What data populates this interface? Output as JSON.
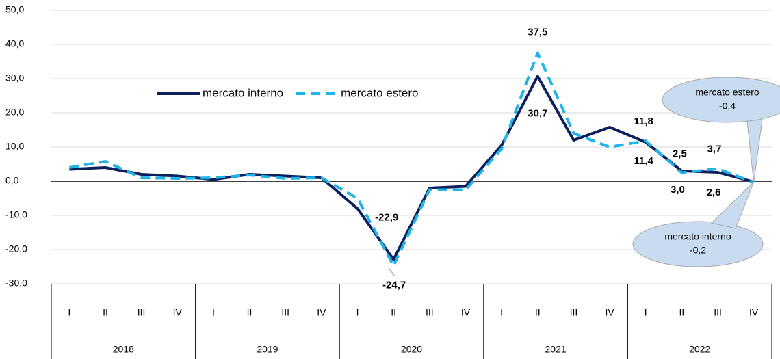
{
  "chart_data": {
    "type": "line",
    "categories": [
      "I",
      "II",
      "III",
      "IV",
      "I",
      "II",
      "III",
      "IV",
      "I",
      "II",
      "III",
      "IV",
      "I",
      "II",
      "III",
      "IV",
      "I",
      "II",
      "III",
      "IV"
    ],
    "groups": [
      "2018",
      "2019",
      "2020",
      "2021",
      "2022"
    ],
    "series": [
      {
        "name": "mercato interno",
        "color": "#0d1f5c",
        "dash": false,
        "values": [
          3.5,
          4.0,
          2.0,
          1.5,
          0.5,
          2.0,
          1.5,
          1.0,
          -8.0,
          -22.9,
          -2.0,
          -1.5,
          10.5,
          30.7,
          12.0,
          15.8,
          11.4,
          3.0,
          2.6,
          -0.2
        ],
        "value_labels": [
          null,
          null,
          null,
          null,
          null,
          null,
          null,
          null,
          null,
          "-22,9",
          null,
          null,
          null,
          "30,7",
          null,
          null,
          "11,4",
          "3,0",
          "2,6",
          "-0,2"
        ]
      },
      {
        "name": "mercato estero",
        "color": "#1fb4e8",
        "dash": true,
        "values": [
          4.0,
          5.8,
          1.0,
          0.8,
          1.0,
          1.8,
          0.8,
          1.0,
          -5.0,
          -24.7,
          -2.5,
          -2.5,
          9.5,
          37.5,
          14.0,
          10.0,
          11.8,
          2.5,
          3.7,
          -0.4
        ],
        "value_labels": [
          null,
          null,
          null,
          null,
          null,
          null,
          null,
          null,
          null,
          "-24,7",
          null,
          null,
          null,
          "37,5",
          null,
          null,
          "11,8",
          "2,5",
          "3,7",
          "-0,4"
        ]
      }
    ],
    "ylim": [
      -30,
      50
    ],
    "yticks": [
      {
        "value": -30,
        "label": "-30,0"
      },
      {
        "value": -20,
        "label": "-20,0"
      },
      {
        "value": -10,
        "label": "-10,0"
      },
      {
        "value": 0,
        "label": "0,0"
      },
      {
        "value": 10,
        "label": "10,0"
      },
      {
        "value": 20,
        "label": "20,0"
      },
      {
        "value": 30,
        "label": "30,0"
      },
      {
        "value": 40,
        "label": "40,0"
      },
      {
        "value": 50,
        "label": "50,0"
      }
    ],
    "grid": true,
    "legend": "top"
  }
}
